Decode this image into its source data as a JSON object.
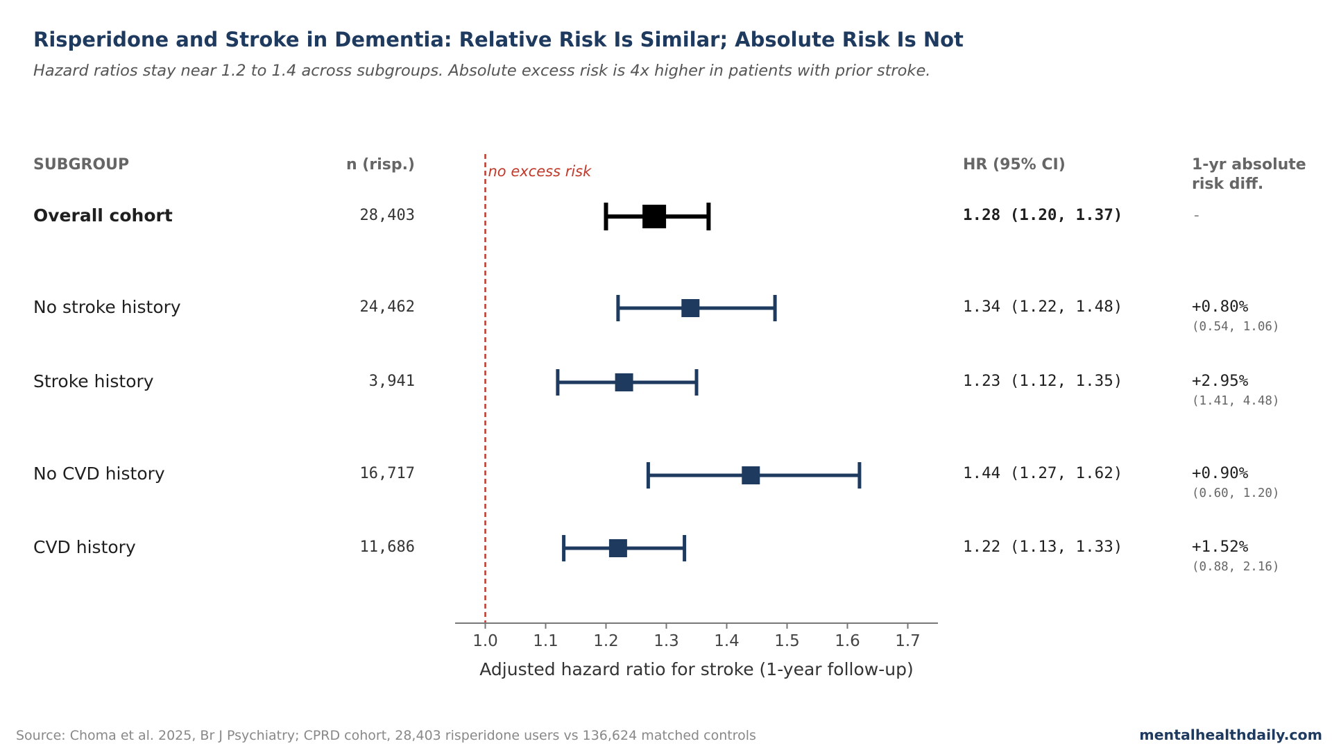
{
  "title": "Risperidone and Stroke in Dementia: Relative Risk Is Similar; Absolute Risk Is Not",
  "subtitle": "Hazard ratios stay near 1.2 to 1.4 across subgroups. Absolute excess risk is 4x higher in patients with prior stroke.",
  "columns": {
    "subgroup": "SUBGROUP",
    "n": "n (risp.)",
    "hr": "HR (95% CI)",
    "rd_line1": "1-yr absolute",
    "rd_line2": "risk diff."
  },
  "reference_label": "no excess risk",
  "rows": [
    {
      "label": "Overall cohort",
      "n": "28,403",
      "hr_text": "1.28 (1.20, 1.37)",
      "rd": "-",
      "rd_ci": ""
    },
    {
      "label": "No stroke history",
      "n": "24,462",
      "hr_text": "1.34 (1.22, 1.48)",
      "rd": "+0.80%",
      "rd_ci": "(0.54, 1.06)"
    },
    {
      "label": "Stroke history",
      "n": "3,941",
      "hr_text": "1.23 (1.12, 1.35)",
      "rd": "+2.95%",
      "rd_ci": "(1.41, 4.48)"
    },
    {
      "label": "No CVD history",
      "n": "16,717",
      "hr_text": "1.44 (1.27, 1.62)",
      "rd": "+0.90%",
      "rd_ci": "(0.60, 1.20)"
    },
    {
      "label": "CVD history",
      "n": "11,686",
      "hr_text": "1.22 (1.13, 1.33)",
      "rd": "+1.52%",
      "rd_ci": "(0.88, 2.16)"
    }
  ],
  "source": "Source: Choma et al. 2025, Br J Psychiatry; CPRD cohort, 28,403 risperidone users vs 136,624 matched controls",
  "brand": "mentalhealthdaily.com",
  "chart_data": {
    "type": "forest",
    "xlabel": "Adjusted hazard ratio for stroke (1-year follow-up)",
    "xlim": [
      0.95,
      1.75
    ],
    "xticks": [
      1.0,
      1.1,
      1.2,
      1.3,
      1.4,
      1.5,
      1.6,
      1.7
    ],
    "xtick_labels": [
      "1.0",
      "1.1",
      "1.2",
      "1.3",
      "1.4",
      "1.5",
      "1.6",
      "1.7"
    ],
    "reference_line": 1.0,
    "categories": [
      "Overall cohort",
      "No stroke history",
      "Stroke history",
      "No CVD history",
      "CVD history"
    ],
    "hr": [
      1.28,
      1.34,
      1.23,
      1.44,
      1.22
    ],
    "ci_low": [
      1.2,
      1.22,
      1.12,
      1.27,
      1.13
    ],
    "ci_high": [
      1.37,
      1.48,
      1.35,
      1.62,
      1.33
    ],
    "colors": {
      "overall": "#000000",
      "subgroup": "#1f3a5f",
      "reference": "#c0392b",
      "axis": "#777777"
    }
  }
}
